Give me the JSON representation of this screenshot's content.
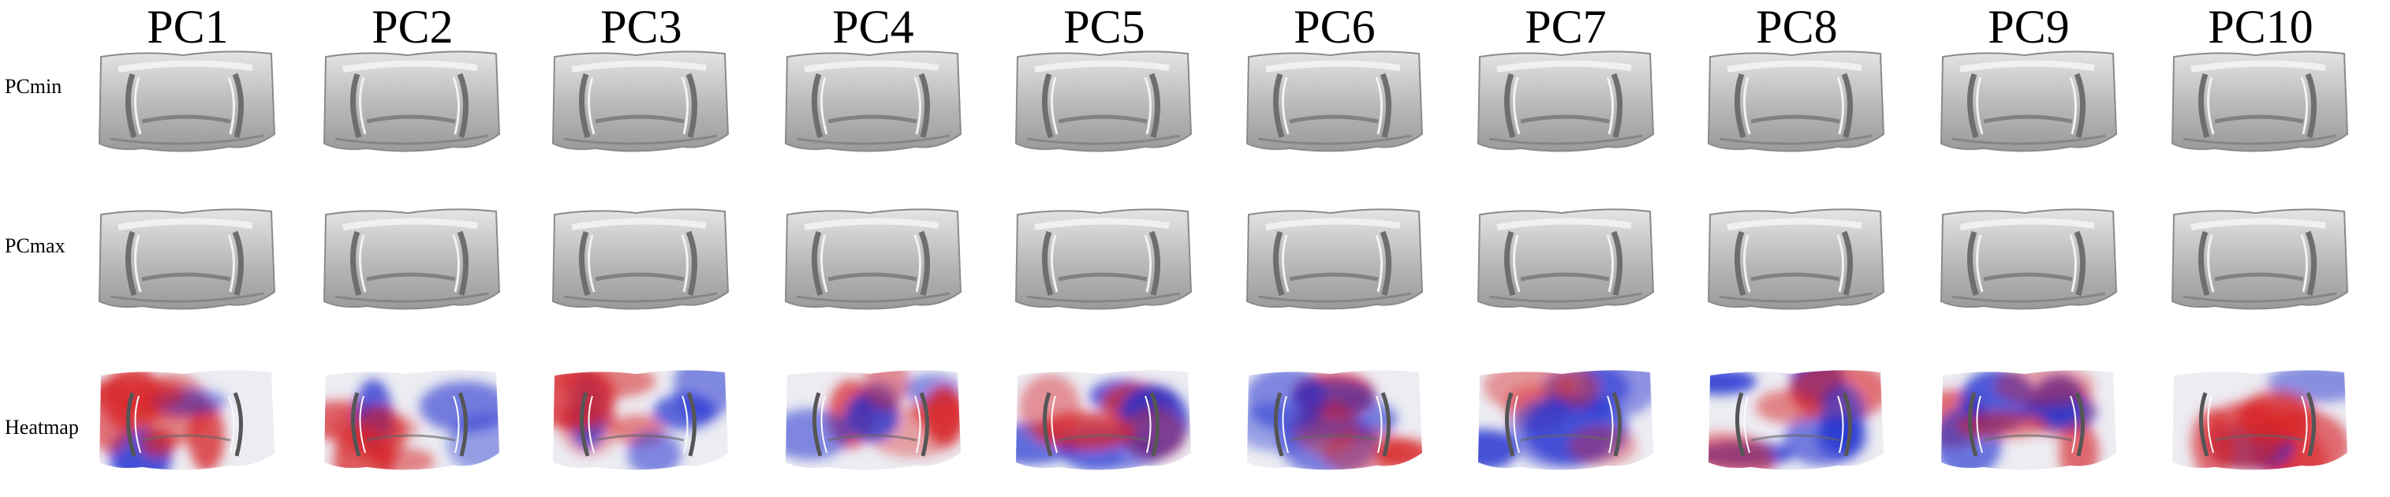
{
  "columns": [
    {
      "label": "PC1"
    },
    {
      "label": "PC2"
    },
    {
      "label": "PC3"
    },
    {
      "label": "PC4"
    },
    {
      "label": "PC5"
    },
    {
      "label": "PC6"
    },
    {
      "label": "PC7"
    },
    {
      "label": "PC8"
    },
    {
      "label": "PC9"
    },
    {
      "label": "PC10"
    }
  ],
  "rows": [
    {
      "label": "PCmin",
      "kind": "gray"
    },
    {
      "label": "PCmax",
      "kind": "gray"
    },
    {
      "label": "Heatmap",
      "kind": "heat"
    }
  ],
  "colors": {
    "surface_light": "#e4e4e4",
    "surface_mid": "#b8b8b8",
    "surface_dark": "#6e6e6e",
    "heat_blue": "#1f2fd0",
    "heat_red": "#d8262a",
    "heat_neutral": "#ececf2"
  }
}
